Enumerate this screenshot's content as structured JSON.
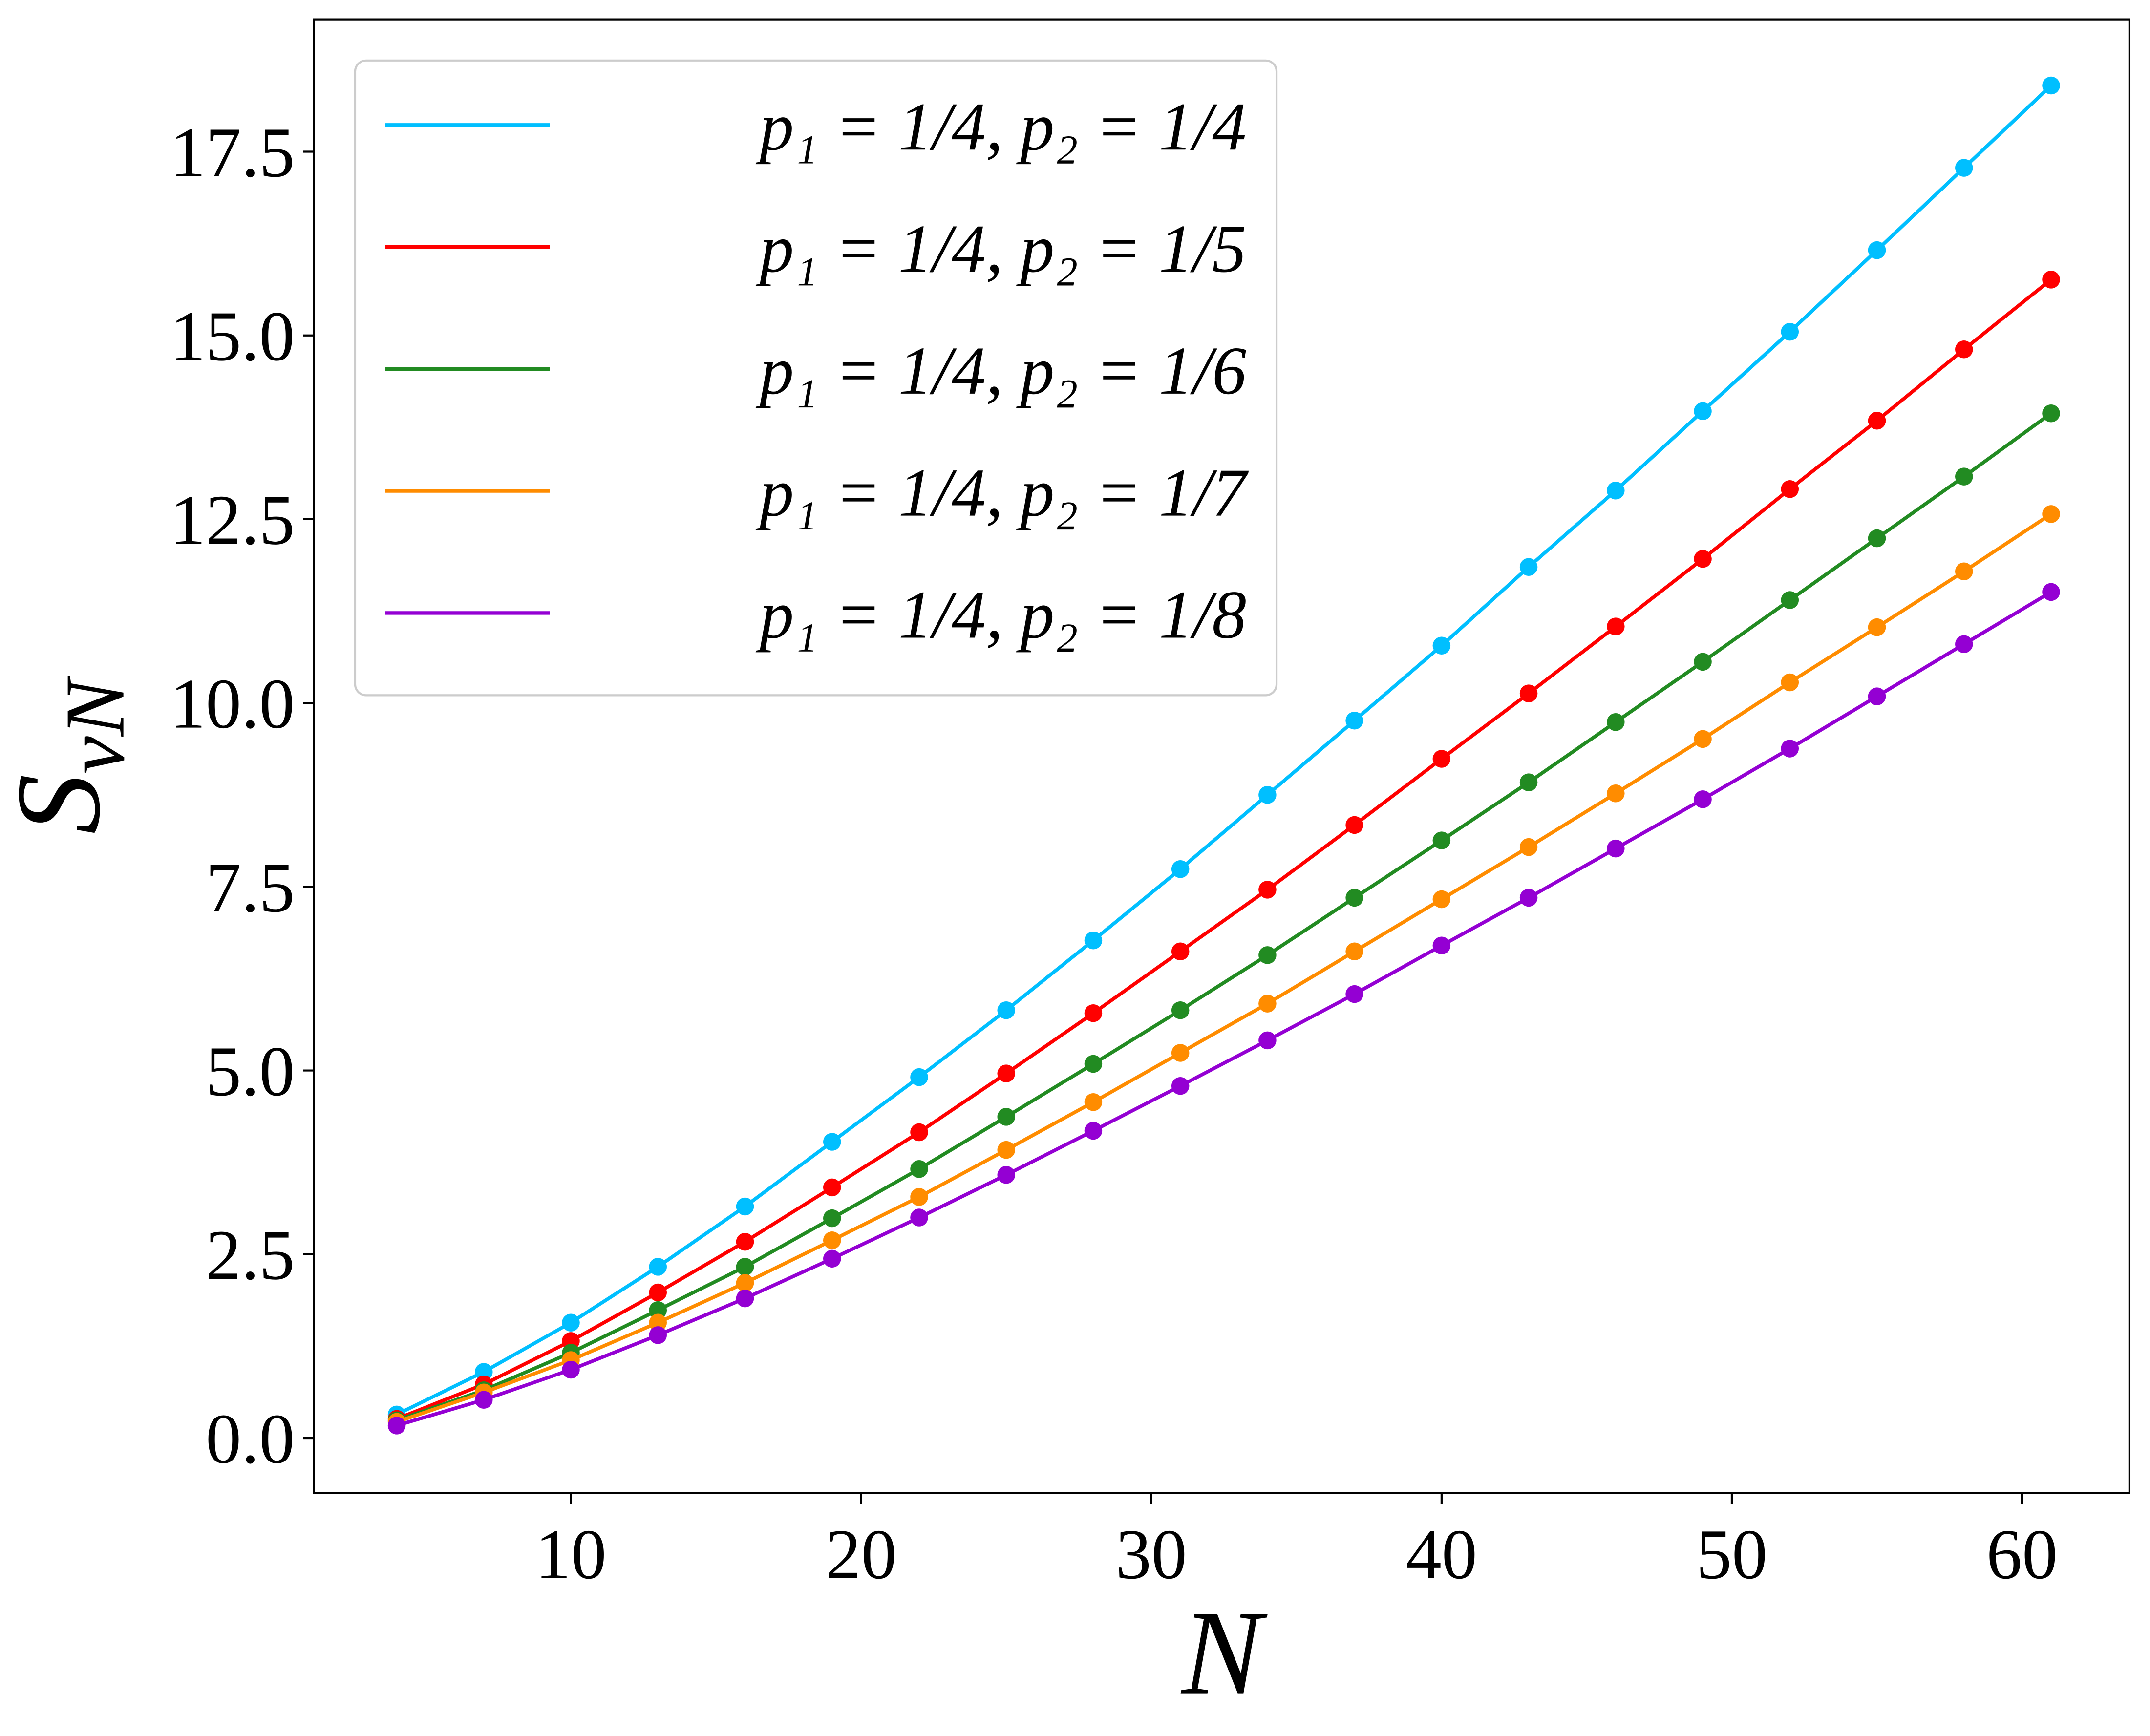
{
  "chart_data": {
    "type": "line",
    "xlabel": "N",
    "ylabel": "SvN",
    "x": [
      4,
      7,
      10,
      13,
      16,
      19,
      22,
      25,
      28,
      31,
      34,
      37,
      40,
      43,
      46,
      49,
      52,
      55,
      58,
      61
    ],
    "series": [
      {
        "name": "p₁ = 1/4,  p₂ = 1/4",
        "color": "#00bfff",
        "values": [
          0.32,
          0.9,
          1.57,
          2.33,
          3.15,
          4.03,
          4.91,
          5.82,
          6.77,
          7.74,
          8.75,
          9.76,
          10.78,
          11.85,
          12.89,
          13.97,
          15.05,
          16.16,
          17.28,
          18.4
        ]
      },
      {
        "name": "p₁ = 1/4,  p₂ = 1/5",
        "color": "#ff0000",
        "values": [
          0.26,
          0.73,
          1.32,
          1.98,
          2.67,
          3.41,
          4.16,
          4.96,
          5.78,
          6.62,
          7.46,
          8.34,
          9.24,
          10.13,
          11.04,
          11.96,
          12.91,
          13.84,
          14.81,
          15.76
        ]
      },
      {
        "name": "p₁ = 1/4,  p₂ = 1/6",
        "color": "#228b22",
        "values": [
          0.24,
          0.65,
          1.16,
          1.74,
          2.33,
          2.99,
          3.66,
          4.37,
          5.09,
          5.82,
          6.57,
          7.35,
          8.13,
          8.92,
          9.74,
          10.56,
          11.4,
          12.24,
          13.08,
          13.94
        ]
      },
      {
        "name": "p₁ = 1/4,  p₂ = 1/7",
        "color": "#ff8c00",
        "values": [
          0.22,
          0.62,
          1.06,
          1.57,
          2.11,
          2.69,
          3.28,
          3.92,
          4.57,
          5.24,
          5.91,
          6.62,
          7.33,
          8.04,
          8.77,
          9.51,
          10.28,
          11.03,
          11.79,
          12.57
        ]
      },
      {
        "name": "p₁ = 1/4,  p₂ = 1/8",
        "color": "#9400d3",
        "values": [
          0.17,
          0.52,
          0.93,
          1.4,
          1.9,
          2.44,
          3.0,
          3.58,
          4.18,
          4.79,
          5.41,
          6.04,
          6.7,
          7.35,
          8.02,
          8.69,
          9.38,
          10.09,
          10.8,
          11.51
        ]
      }
    ],
    "xlim": [
      1.15,
      63.7
    ],
    "ylim": [
      -0.75,
      19.3
    ],
    "xticks": [
      10,
      20,
      30,
      40,
      50,
      60
    ],
    "yticks": [
      {
        "value": 0,
        "label": "0.0"
      },
      2.5,
      {
        "value": 5,
        "label": "5.0"
      },
      7.5,
      {
        "value": 10,
        "label": "10.0"
      },
      12.5,
      {
        "value": 15,
        "label": "15.0"
      },
      17.5
    ],
    "legend": "upper left",
    "grid": false
  }
}
